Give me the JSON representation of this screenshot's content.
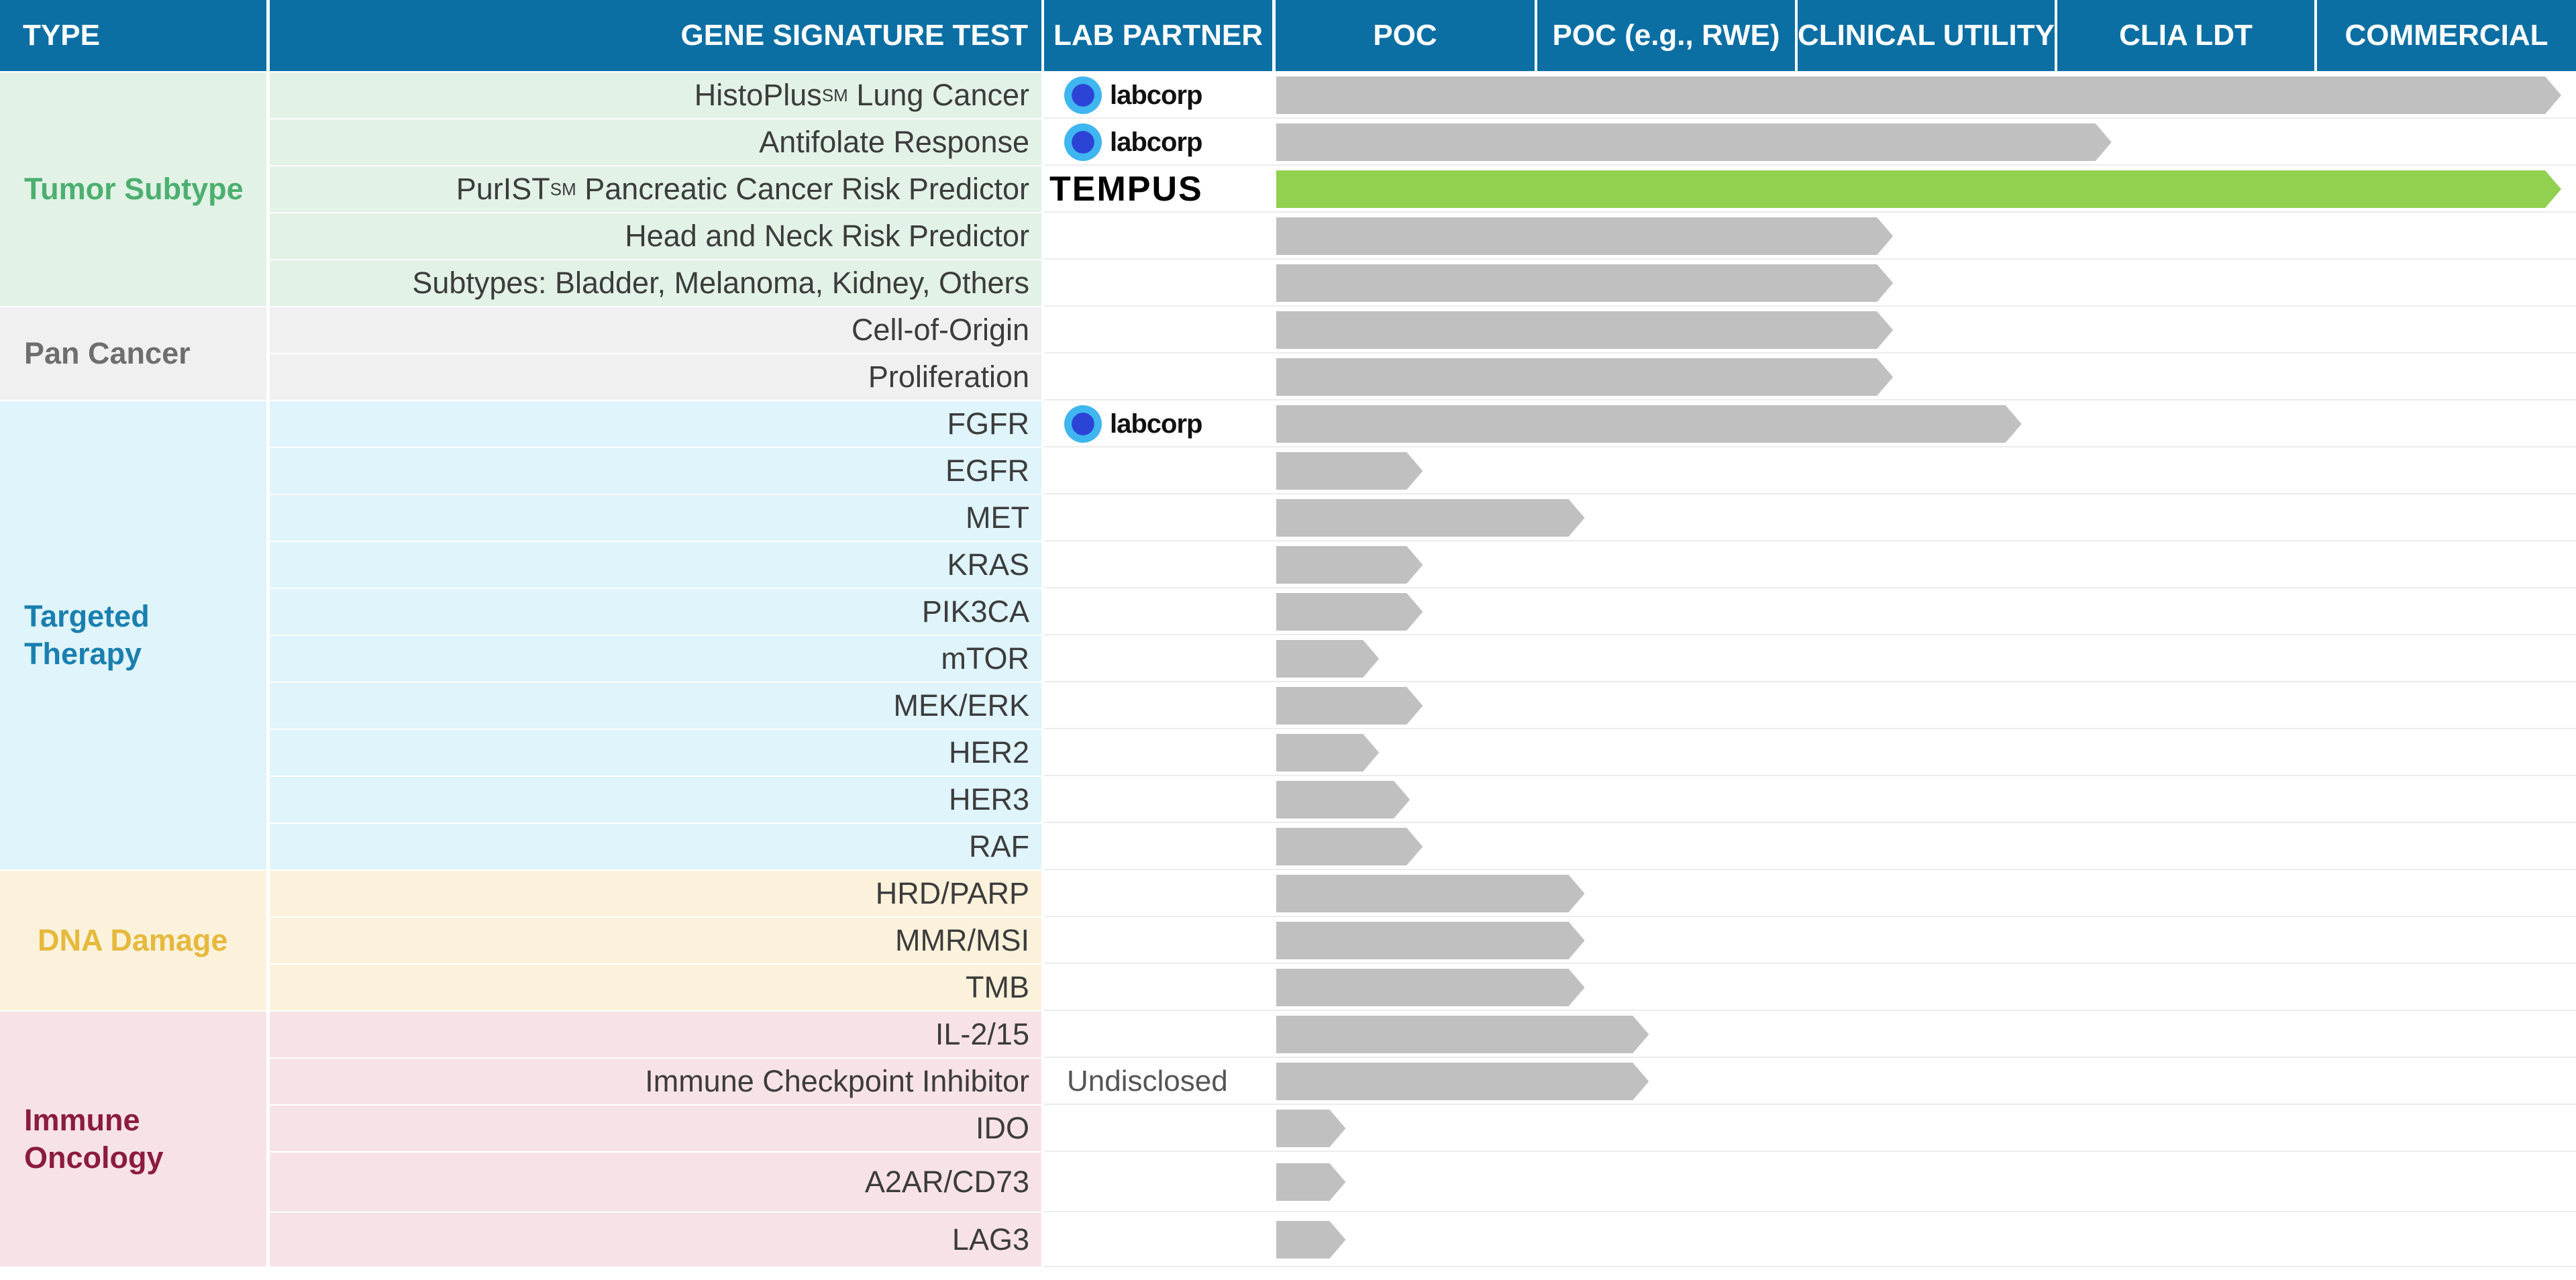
{
  "headers": {
    "type": "TYPE",
    "test": "GENE SIGNATURE TEST",
    "partner": "LAB PARTNER",
    "stages": [
      "POC",
      "POC (e.g., RWE)",
      "CLINICAL UTILITY",
      "CLIA LDT",
      "COMMERCIAL"
    ]
  },
  "colors": {
    "header_bg": "#0b6fa4",
    "bar_gray": "#c0c0c0",
    "bar_green": "#92d050"
  },
  "groups": [
    {
      "label": "Tumor Subtype",
      "color": "#4caf6f",
      "bg": "#e2f2e6"
    },
    {
      "label": "Pan Cancer",
      "color": "#6e6e6e",
      "bg": "#f0f0f0"
    },
    {
      "label": "Targeted Therapy",
      "color": "#1a7fb0",
      "bg": "#dff4fb"
    },
    {
      "label": "DNA Damage",
      "color": "#e6b93c",
      "bg": "#fcf2dc"
    },
    {
      "label": "Immune Oncology",
      "color": "#8b1c3f",
      "bg": "#f7e3e6"
    }
  ],
  "rows": [
    {
      "group": 0,
      "test": "HistoPlus",
      "sup": "SM",
      "suffix": " Lung Cancer",
      "partner": "labcorp",
      "partner_text": "labcorp"
    },
    {
      "group": 0,
      "test": "Antifolate Response",
      "partner": "labcorp",
      "partner_text": "labcorp"
    },
    {
      "group": 0,
      "test": "PurIST",
      "sup": "SM",
      "suffix": " Pancreatic Cancer Risk Predictor",
      "partner": "tempus",
      "partner_text": "TEMPUS"
    },
    {
      "group": 0,
      "test": "Head and Neck Risk Predictor"
    },
    {
      "group": 0,
      "test": "Subtypes: Bladder, Melanoma, Kidney, Others"
    },
    {
      "group": 1,
      "test": "Cell-of-Origin"
    },
    {
      "group": 1,
      "test": "Proliferation"
    },
    {
      "group": 2,
      "test": "FGFR",
      "partner": "labcorp",
      "partner_text": "labcorp"
    },
    {
      "group": 2,
      "test": "EGFR"
    },
    {
      "group": 2,
      "test": "MET"
    },
    {
      "group": 2,
      "test": "KRAS"
    },
    {
      "group": 2,
      "test": "PIK3CA"
    },
    {
      "group": 2,
      "test": "mTOR"
    },
    {
      "group": 2,
      "test": "MEK/ERK"
    },
    {
      "group": 2,
      "test": "HER2"
    },
    {
      "group": 2,
      "test": "HER3"
    },
    {
      "group": 2,
      "test": "RAF"
    },
    {
      "group": 3,
      "test": "HRD/PARP"
    },
    {
      "group": 3,
      "test": "MMR/MSI"
    },
    {
      "group": 3,
      "test": "TMB"
    },
    {
      "group": 4,
      "test": "IL-2/15"
    },
    {
      "group": 4,
      "test": "Immune Checkpoint Inhibitor",
      "partner": "text",
      "partner_text": "Undisclosed"
    },
    {
      "group": 4,
      "test": "IDO"
    },
    {
      "group": 4,
      "test": "A2AR/CD73"
    },
    {
      "group": 4,
      "test": "LAG3"
    }
  ],
  "chart_data": {
    "type": "bar",
    "orientation": "horizontal",
    "categories": [
      "HistoPlus Lung Cancer",
      "Antifolate Response",
      "PurIST Pancreatic Cancer Risk Predictor",
      "Head and Neck Risk Predictor",
      "Subtypes: Bladder, Melanoma, Kidney, Others",
      "Cell-of-Origin",
      "Proliferation",
      "FGFR",
      "EGFR",
      "MET",
      "KRAS",
      "PIK3CA",
      "mTOR",
      "MEK/ERK",
      "HER2",
      "HER3",
      "RAF",
      "HRD/PARP",
      "MMR/MSI",
      "TMB",
      "IL-2/15",
      "Immune Checkpoint Inhibitor",
      "IDO",
      "A2AR/CD73",
      "LAG3"
    ],
    "stage_axis": [
      "POC",
      "POC (e.g., RWE)",
      "CLINICAL UTILITY",
      "CLIA LDT",
      "COMMERCIAL"
    ],
    "values": [
      5.0,
      3.25,
      5.0,
      2.4,
      2.4,
      2.4,
      2.4,
      2.9,
      0.57,
      1.2,
      0.57,
      0.57,
      0.4,
      0.57,
      0.4,
      0.52,
      0.57,
      1.2,
      1.2,
      1.2,
      1.45,
      1.45,
      0.27,
      0.27,
      0.27
    ],
    "highlight": [
      false,
      false,
      true,
      false,
      false,
      false,
      false,
      false,
      false,
      false,
      false,
      false,
      false,
      false,
      false,
      false,
      false,
      false,
      false,
      false,
      false,
      false,
      false,
      false,
      false
    ],
    "xlim": [
      0,
      5
    ]
  }
}
